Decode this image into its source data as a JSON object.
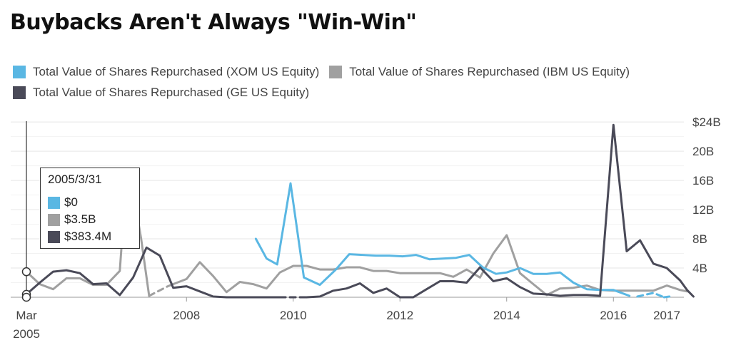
{
  "title": "Buybacks Aren't Always \"Win-Win\"",
  "colors": {
    "xom": "#5ab7e3",
    "ibm": "#a0a0a0",
    "ge": "#4a4a58"
  },
  "legend": {
    "xom": "Total Value of Shares Repurchased  (XOM US Equity)",
    "ibm": "Total Value of Shares Repurchased  (IBM US Equity)",
    "ge": "Total Value of Shares Repurchased  (GE US Equity)"
  },
  "tooltip": {
    "date": "2005/3/31",
    "xom": "$0",
    "ibm": "$3.5B",
    "ge": "$383.4M"
  },
  "chart_data": {
    "type": "line",
    "title": "Buybacks Aren't Always \"Win-Win\"",
    "x_ticks": [
      {
        "x": 2005.0,
        "line1": "Mar",
        "line2": "2005"
      },
      {
        "x": 2008.0,
        "line1": "2008"
      },
      {
        "x": 2010.0,
        "line1": "2010"
      },
      {
        "x": 2012.0,
        "line1": "2012"
      },
      {
        "x": 2014.0,
        "line1": "2014"
      },
      {
        "x": 2016.0,
        "line1": "2016"
      },
      {
        "x": 2017.0,
        "line1": "2017"
      }
    ],
    "y_ticks": [
      {
        "v": 4,
        "label": "4B"
      },
      {
        "v": 8,
        "label": "8B"
      },
      {
        "v": 12,
        "label": "12B"
      },
      {
        "v": 16,
        "label": "16B"
      },
      {
        "v": 20,
        "label": "20B"
      },
      {
        "v": 24,
        "label": "$24B"
      }
    ],
    "xlim": [
      2004.95,
      2017.38
    ],
    "ylim": [
      0,
      24.6
    ],
    "y_unit": "billions USD",
    "series": [
      {
        "key": "xom",
        "name": "Total Value of Shares Repurchased  (XOM US Equity)",
        "segments": [
          {
            "dashed": false,
            "points": [
              [
                2009.3,
                8.0
              ],
              [
                2009.5,
                5.3
              ],
              [
                2009.7,
                4.5
              ],
              [
                2009.95,
                15.6
              ],
              [
                2010.2,
                2.7
              ],
              [
                2010.5,
                1.7
              ],
              [
                2010.8,
                3.8
              ],
              [
                2011.05,
                5.9
              ],
              [
                2011.3,
                5.8
              ],
              [
                2011.55,
                5.7
              ],
              [
                2011.8,
                5.7
              ],
              [
                2012.05,
                5.6
              ],
              [
                2012.3,
                5.8
              ],
              [
                2012.55,
                5.2
              ],
              [
                2012.8,
                5.3
              ],
              [
                2013.05,
                5.4
              ],
              [
                2013.3,
                5.8
              ],
              [
                2013.55,
                4.1
              ],
              [
                2013.8,
                3.2
              ],
              [
                2014.0,
                3.4
              ],
              [
                2014.25,
                4.0
              ],
              [
                2014.5,
                3.2
              ],
              [
                2014.75,
                3.2
              ],
              [
                2015.0,
                3.4
              ],
              [
                2015.25,
                2.0
              ],
              [
                2015.5,
                1.1
              ],
              [
                2015.75,
                1.0
              ],
              [
                2016.0,
                1.0
              ],
              [
                2016.3,
                0.2
              ]
            ]
          },
          {
            "dashed": true,
            "points": [
              [
                2016.45,
                0.1
              ],
              [
                2016.75,
                0.6
              ],
              [
                2016.95,
                0.0
              ]
            ]
          },
          {
            "dashed": false,
            "points": [
              [
                2016.95,
                0.0
              ],
              [
                2017.05,
                0.1
              ]
            ]
          }
        ]
      },
      {
        "key": "ibm",
        "name": "Total Value of Shares Repurchased  (IBM US Equity)",
        "segments": [
          {
            "dashed": false,
            "points": [
              [
                2005.0,
                3.5
              ],
              [
                2005.25,
                1.8
              ],
              [
                2005.5,
                1.1
              ],
              [
                2005.75,
                2.6
              ],
              [
                2006.0,
                2.6
              ],
              [
                2006.25,
                1.7
              ],
              [
                2006.5,
                1.7
              ],
              [
                2006.75,
                3.6
              ],
              [
                2006.85,
                13.9
              ],
              [
                2007.0,
                14.7
              ],
              [
                2007.15,
                8.0
              ],
              [
                2007.3,
                0.2
              ]
            ]
          },
          {
            "dashed": true,
            "points": [
              [
                2007.3,
                0.2
              ],
              [
                2007.65,
                1.5
              ],
              [
                2007.75,
                1.8
              ]
            ]
          },
          {
            "dashed": false,
            "points": [
              [
                2007.75,
                1.8
              ],
              [
                2008.0,
                2.5
              ],
              [
                2008.25,
                4.8
              ],
              [
                2008.5,
                2.9
              ],
              [
                2008.75,
                0.7
              ],
              [
                2009.0,
                2.1
              ],
              [
                2009.25,
                1.8
              ],
              [
                2009.5,
                1.2
              ],
              [
                2009.75,
                3.4
              ],
              [
                2010.0,
                4.3
              ],
              [
                2010.25,
                4.3
              ],
              [
                2010.5,
                3.8
              ],
              [
                2010.75,
                3.8
              ],
              [
                2011.0,
                4.1
              ],
              [
                2011.25,
                4.1
              ],
              [
                2011.5,
                3.6
              ],
              [
                2011.75,
                3.6
              ],
              [
                2012.0,
                3.3
              ],
              [
                2012.25,
                3.3
              ],
              [
                2012.5,
                3.3
              ],
              [
                2012.75,
                3.3
              ],
              [
                2013.0,
                2.8
              ],
              [
                2013.25,
                3.8
              ],
              [
                2013.5,
                2.7
              ],
              [
                2013.75,
                6.0
              ],
              [
                2014.0,
                8.5
              ],
              [
                2014.25,
                3.3
              ],
              [
                2014.5,
                1.8
              ],
              [
                2014.75,
                0.3
              ],
              [
                2015.0,
                1.2
              ],
              [
                2015.25,
                1.3
              ],
              [
                2015.5,
                1.6
              ],
              [
                2015.75,
                1.0
              ],
              [
                2016.0,
                0.9
              ],
              [
                2016.25,
                0.9
              ],
              [
                2016.5,
                0.9
              ],
              [
                2016.75,
                0.9
              ],
              [
                2017.0,
                1.6
              ],
              [
                2017.25,
                1.0
              ],
              [
                2017.38,
                0.8
              ]
            ]
          }
        ]
      },
      {
        "key": "ge",
        "name": "Total Value of Shares Repurchased  (GE US Equity)",
        "segments": [
          {
            "dashed": false,
            "points": [
              [
                2005.0,
                0.4
              ],
              [
                2005.25,
                2.0
              ],
              [
                2005.5,
                3.5
              ],
              [
                2005.75,
                3.7
              ],
              [
                2006.0,
                3.3
              ],
              [
                2006.25,
                1.8
              ],
              [
                2006.5,
                1.9
              ],
              [
                2006.75,
                0.3
              ],
              [
                2007.0,
                2.7
              ],
              [
                2007.25,
                6.8
              ],
              [
                2007.5,
                5.7
              ],
              [
                2007.75,
                1.3
              ],
              [
                2008.0,
                1.5
              ],
              [
                2008.25,
                0.8
              ],
              [
                2008.5,
                0.1
              ],
              [
                2008.75,
                0.0
              ],
              [
                2009.0,
                0.0
              ],
              [
                2009.25,
                0.0
              ],
              [
                2009.5,
                0.0
              ],
              [
                2009.75,
                0.0
              ]
            ]
          },
          {
            "dashed": true,
            "points": [
              [
                2009.75,
                0.0
              ],
              [
                2010.0,
                0.0
              ],
              [
                2010.25,
                0.0
              ]
            ]
          },
          {
            "dashed": false,
            "points": [
              [
                2010.25,
                0.0
              ],
              [
                2010.5,
                0.1
              ],
              [
                2010.75,
                0.9
              ],
              [
                2011.0,
                1.2
              ],
              [
                2011.25,
                1.9
              ],
              [
                2011.5,
                0.6
              ],
              [
                2011.75,
                1.2
              ],
              [
                2012.0,
                0.0
              ],
              [
                2012.25,
                0.0
              ],
              [
                2012.5,
                1.1
              ],
              [
                2012.75,
                2.2
              ],
              [
                2013.0,
                2.2
              ],
              [
                2013.25,
                2.0
              ],
              [
                2013.5,
                4.1
              ],
              [
                2013.75,
                2.2
              ],
              [
                2014.0,
                2.6
              ],
              [
                2014.25,
                1.4
              ],
              [
                2014.5,
                0.5
              ],
              [
                2014.75,
                0.4
              ],
              [
                2015.0,
                0.2
              ],
              [
                2015.25,
                0.3
              ],
              [
                2015.5,
                0.3
              ],
              [
                2015.75,
                0.2
              ],
              [
                2016.0,
                23.6
              ],
              [
                2016.25,
                6.3
              ],
              [
                2016.5,
                7.8
              ],
              [
                2016.75,
                4.6
              ],
              [
                2017.0,
                4.0
              ],
              [
                2017.25,
                2.3
              ],
              [
                2017.38,
                1.0
              ],
              [
                2017.5,
                0.1
              ]
            ]
          }
        ]
      }
    ],
    "cursor": {
      "x": 2005.0,
      "values": {
        "xom": 0.0,
        "ibm": 3.5,
        "ge": 0.4
      }
    }
  }
}
